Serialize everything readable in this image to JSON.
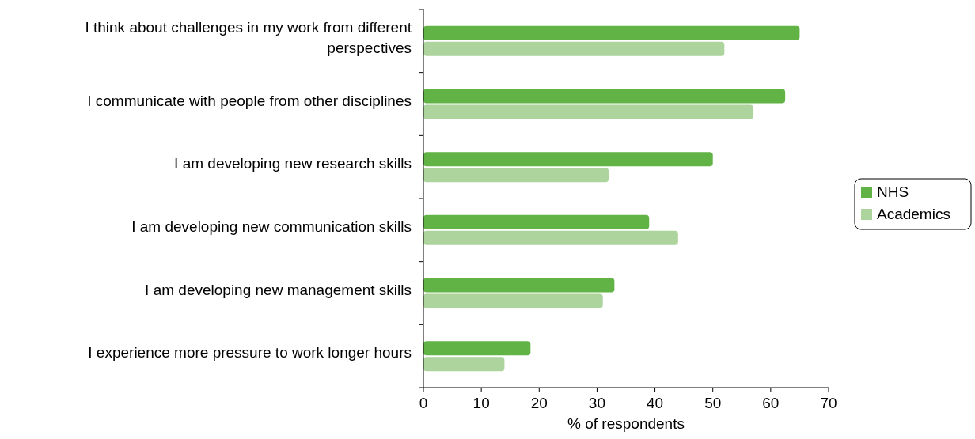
{
  "chart_data": {
    "type": "bar",
    "orientation": "horizontal",
    "categories": [
      "I think about challenges in my work from different perspectives",
      "I communicate with people from other disciplines",
      "I am developing new research skills",
      "I am developing new communication skills",
      "I am developing new management skills",
      "I experience more pressure to work longer hours"
    ],
    "series": [
      {
        "name": "NHS",
        "color": "#62b346",
        "values": [
          65,
          62.5,
          50,
          39,
          33,
          18.5
        ]
      },
      {
        "name": "Academics",
        "color": "#acd49c",
        "values": [
          52,
          57,
          32,
          44,
          31,
          14
        ]
      }
    ],
    "xlabel": "% of respondents",
    "xlim": [
      0,
      70
    ],
    "xticks": [
      0,
      10,
      20,
      30,
      40,
      50,
      60,
      70
    ],
    "grid": false,
    "legend": "right"
  }
}
